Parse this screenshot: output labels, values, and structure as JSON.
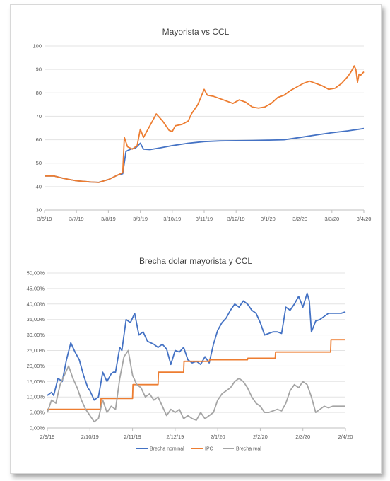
{
  "chart_data": [
    {
      "type": "line",
      "title": "Mayorista vs CCL",
      "xlabel": "",
      "ylabel": "",
      "ylim": [
        30,
        100
      ],
      "yticks": [
        "100",
        "90",
        "80",
        "70",
        "60",
        "50",
        "40",
        "30"
      ],
      "xticks": [
        "3/6/19",
        "3/7/19",
        "3/8/19",
        "3/9/19",
        "3/10/19",
        "3/11/19",
        "3/12/19",
        "3/1/20",
        "3/2/20",
        "3/3/20",
        "3/4/20"
      ],
      "x_range": [
        0,
        10
      ],
      "grid": true,
      "series": [
        {
          "color": "#4472c4",
          "x": [
            0,
            0.3,
            0.6,
            1,
            1.4,
            1.7,
            2,
            2.3,
            2.45,
            2.55,
            2.7,
            2.85,
            3,
            3.1,
            3.3,
            3.6,
            4,
            4.5,
            5,
            5.5,
            6,
            6.5,
            7,
            7.5,
            8,
            8.5,
            9,
            9.5,
            10
          ],
          "values": [
            44.5,
            44.5,
            43.5,
            42.5,
            42,
            41.8,
            43,
            45,
            45.5,
            55,
            56,
            56.5,
            58.5,
            56,
            55.8,
            56.5,
            57.5,
            58.5,
            59.2,
            59.5,
            59.6,
            59.7,
            59.8,
            60,
            61,
            62,
            63,
            63.8,
            64.8
          ]
        },
        {
          "color": "#ed7d31",
          "x": [
            0,
            0.3,
            0.6,
            1,
            1.4,
            1.7,
            2,
            2.3,
            2.45,
            2.5,
            2.6,
            2.75,
            2.9,
            3,
            3.1,
            3.3,
            3.5,
            3.7,
            3.9,
            4,
            4.1,
            4.3,
            4.5,
            4.6,
            4.8,
            5,
            5.1,
            5.3,
            5.6,
            5.9,
            6.1,
            6.3,
            6.5,
            6.7,
            6.9,
            7.1,
            7.3,
            7.5,
            7.7,
            7.9,
            8.1,
            8.3,
            8.5,
            8.7,
            8.9,
            9.1,
            9.3,
            9.5,
            9.6,
            9.7,
            9.75,
            9.8,
            9.85,
            9.9,
            10
          ],
          "values": [
            44.5,
            44.5,
            43.5,
            42.5,
            42,
            41.8,
            43,
            45,
            46,
            61,
            57,
            56,
            57.5,
            64.5,
            61,
            66,
            71,
            68,
            64,
            63.5,
            66,
            66.5,
            68,
            71,
            75,
            81.5,
            79,
            78.5,
            77,
            75.5,
            77,
            76,
            74,
            73.5,
            74,
            75.5,
            78,
            79,
            81,
            82.5,
            84,
            85,
            84,
            83,
            81.5,
            82,
            84,
            87,
            89,
            91.5,
            90,
            84.5,
            88,
            87.5,
            89
          ]
        }
      ]
    },
    {
      "type": "line",
      "title": "Brecha dolar mayorista y CCL",
      "xlabel": "",
      "ylabel": "",
      "ylim": [
        0,
        50
      ],
      "yticks": [
        "50,00%",
        "45,00%",
        "40,00%",
        "35,00%",
        "30,00%",
        "25,00%",
        "20,00%",
        "15,00%",
        "10,00%",
        "5,00%",
        "0,00%"
      ],
      "xticks": [
        "2/9/19",
        "2/10/19",
        "2/11/19",
        "2/12/19",
        "2/1/20",
        "2/2/20",
        "2/3/20",
        "2/4/20"
      ],
      "x_range": [
        0,
        7
      ],
      "grid": true,
      "legend_position": "bottom",
      "series": [
        {
          "name": "Brecha nominal",
          "color": "#4472c4",
          "x": [
            0,
            0.05,
            0.1,
            0.15,
            0.25,
            0.35,
            0.45,
            0.55,
            0.65,
            0.75,
            0.85,
            0.95,
            1.0,
            1.1,
            1.2,
            1.3,
            1.4,
            1.5,
            1.55,
            1.6,
            1.7,
            1.75,
            1.85,
            1.95,
            2.05,
            2.15,
            2.25,
            2.35,
            2.5,
            2.6,
            2.7,
            2.8,
            2.9,
            3.0,
            3.1,
            3.2,
            3.3,
            3.4,
            3.5,
            3.6,
            3.7,
            3.8,
            3.9,
            4.0,
            4.1,
            4.2,
            4.3,
            4.4,
            4.5,
            4.6,
            4.7,
            4.8,
            4.9,
            5.0,
            5.1,
            5.2,
            5.3,
            5.4,
            5.5,
            5.6,
            5.7,
            5.8,
            5.9,
            6.0,
            6.1,
            6.15,
            6.2,
            6.3,
            6.4,
            6.5,
            6.6,
            6.7,
            6.8,
            6.9,
            7.0
          ],
          "values": [
            10.5,
            11,
            11.5,
            10.5,
            16,
            15,
            22,
            27.5,
            24.5,
            22,
            17,
            13,
            12,
            9,
            10,
            18,
            15,
            17.5,
            18,
            18,
            26,
            25,
            35,
            34,
            37,
            30,
            31,
            28,
            27,
            26,
            27,
            25.5,
            20.5,
            25,
            24.5,
            26,
            22,
            21,
            21.5,
            20.5,
            23,
            21,
            27,
            31.5,
            34,
            35.5,
            38,
            40,
            39,
            41,
            40,
            38,
            37,
            34,
            30,
            30.5,
            31,
            31,
            30.5,
            39,
            38,
            40,
            42.5,
            39,
            43.5,
            41,
            31,
            34.5,
            35,
            36,
            37,
            37,
            37,
            37,
            37.5
          ]
        },
        {
          "name": "IPC",
          "color": "#ed7d31",
          "x": [
            0,
            1.25,
            1.26,
            2.0,
            2.01,
            2.6,
            2.61,
            3.2,
            3.21,
            3.8,
            3.81,
            4.7,
            4.71,
            5.35,
            5.36,
            6.65,
            6.66,
            6.85,
            6.86,
            7.0
          ],
          "values": [
            6,
            6,
            9.5,
            9.5,
            14,
            14,
            18,
            18,
            21.5,
            21.5,
            22,
            22,
            22.5,
            22.5,
            24.5,
            24.5,
            28.5,
            28.5,
            28.5,
            28.5
          ]
        },
        {
          "name": "Brecha real",
          "color": "#a5a5a5",
          "x": [
            0,
            0.1,
            0.2,
            0.3,
            0.4,
            0.5,
            0.6,
            0.7,
            0.8,
            0.9,
            1.0,
            1.1,
            1.2,
            1.3,
            1.4,
            1.5,
            1.6,
            1.7,
            1.8,
            1.9,
            2.0,
            2.1,
            2.2,
            2.3,
            2.4,
            2.5,
            2.6,
            2.7,
            2.8,
            2.9,
            3.0,
            3.1,
            3.2,
            3.3,
            3.4,
            3.5,
            3.6,
            3.7,
            3.8,
            3.9,
            4.0,
            4.1,
            4.2,
            4.3,
            4.4,
            4.5,
            4.6,
            4.7,
            4.8,
            4.9,
            5.0,
            5.1,
            5.2,
            5.3,
            5.4,
            5.5,
            5.6,
            5.7,
            5.8,
            5.9,
            6.0,
            6.1,
            6.2,
            6.3,
            6.4,
            6.5,
            6.6,
            6.7,
            6.8,
            6.9,
            7.0
          ],
          "values": [
            5,
            9,
            8,
            14,
            17,
            20,
            16,
            13,
            9,
            6,
            4,
            2,
            3,
            9,
            5,
            7,
            6,
            16,
            23,
            25,
            17,
            14,
            13,
            10,
            11,
            9,
            10,
            7,
            4,
            6,
            5,
            6,
            3,
            4,
            3,
            2.5,
            5,
            3,
            4,
            5,
            9,
            11,
            12,
            13,
            15,
            16,
            15,
            13,
            10,
            8,
            7,
            5,
            5,
            5.5,
            6,
            5.5,
            8,
            12,
            14,
            13,
            15,
            14,
            10,
            5,
            6,
            7,
            6.5,
            7,
            7,
            7,
            7
          ]
        }
      ]
    }
  ]
}
